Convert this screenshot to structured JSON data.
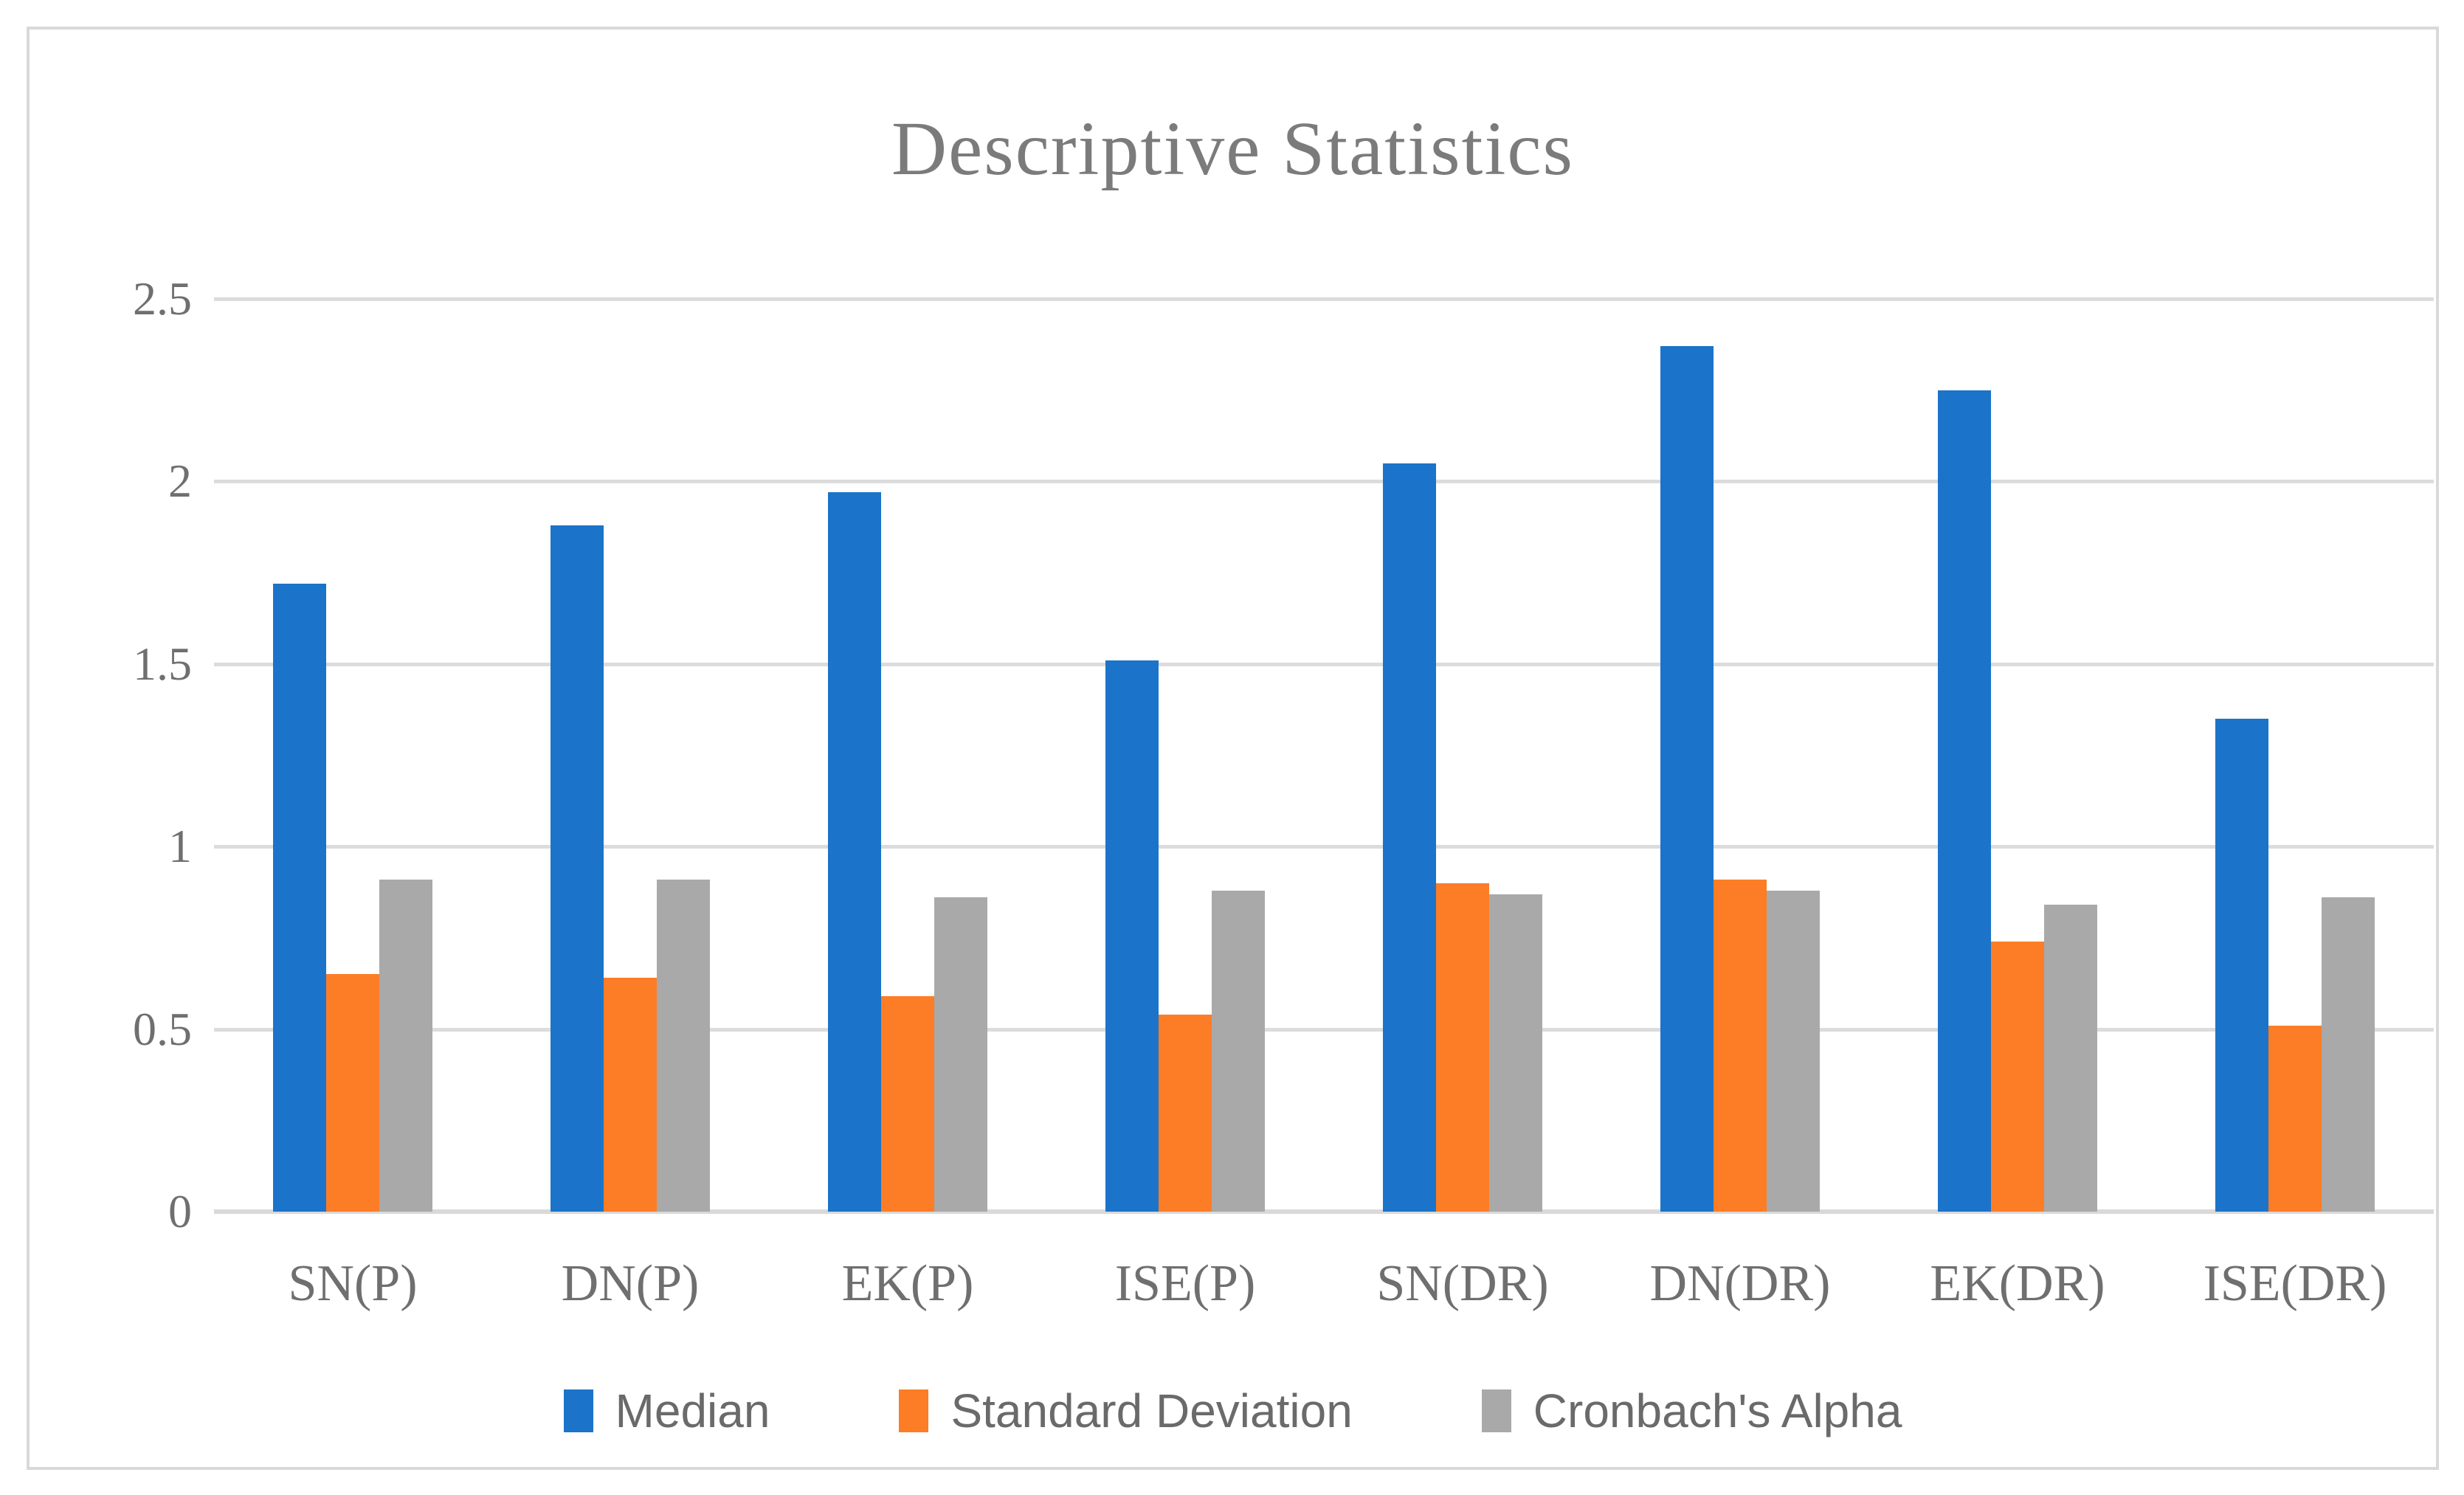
{
  "chart_data": {
    "type": "bar",
    "title": "Descriptive Statistics",
    "categories": [
      "SN(P)",
      "DN(P)",
      "EK(P)",
      "ISE(P)",
      "SN(DR)",
      "DN(DR)",
      "EK(DR)",
      "ISE(DR)"
    ],
    "series": [
      {
        "name": "Median",
        "color": "#1b74c9",
        "values": [
          1.72,
          1.88,
          1.97,
          1.51,
          2.05,
          2.37,
          2.25,
          1.35
        ]
      },
      {
        "name": "Standard Deviation",
        "color": "#fc7d26",
        "values": [
          0.65,
          0.64,
          0.59,
          0.54,
          0.9,
          0.91,
          0.74,
          0.51
        ]
      },
      {
        "name": "Cronbach's Alpha",
        "color": "#a9a9a9",
        "values": [
          0.91,
          0.91,
          0.86,
          0.88,
          0.87,
          0.88,
          0.84,
          0.86
        ]
      }
    ],
    "xlabel": "",
    "ylabel": "",
    "ylim": [
      0,
      2.5
    ],
    "ytick_labels": [
      "0",
      "0.5",
      "1",
      "1.5",
      "2",
      "2.5"
    ],
    "ytick_values": [
      0,
      0.5,
      1,
      1.5,
      2,
      2.5
    ],
    "grid": "horizontal",
    "legend_position": "bottom",
    "gridline_color": "#dcdcdc",
    "text_color": "#6f6f6f",
    "title_color": "#7b7b7b"
  }
}
